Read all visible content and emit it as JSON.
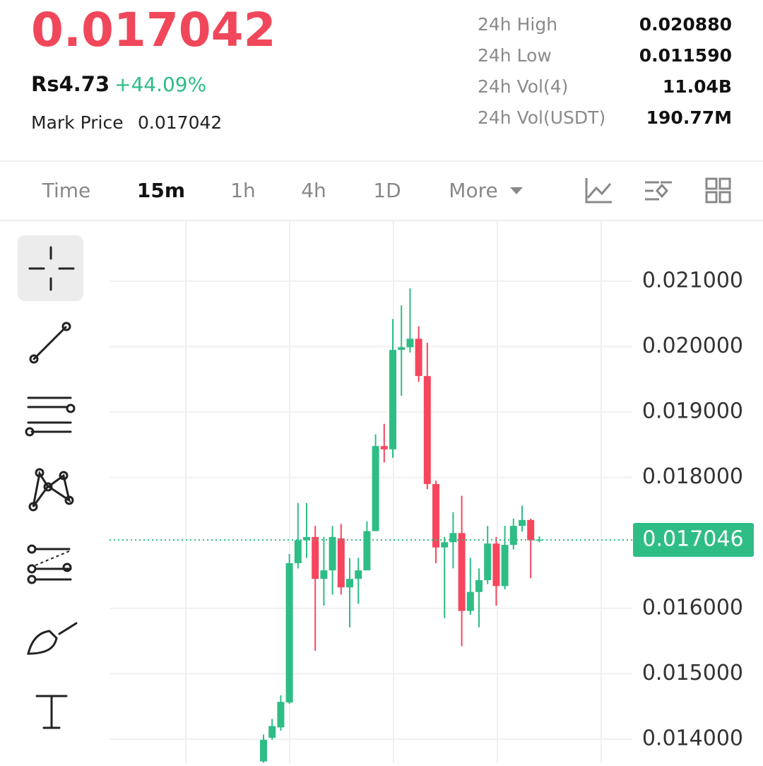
{
  "header": {
    "price": "0.017042",
    "fiat_price": "Rs4.73",
    "change": "+44.09%",
    "mark_price_label": "Mark Price",
    "mark_price": "0.017042",
    "stats": [
      {
        "label": "24h High",
        "value": "0.020880"
      },
      {
        "label": "24h Low",
        "value": "0.011590"
      },
      {
        "label": "24h Vol(4)",
        "value": "11.04B"
      },
      {
        "label": "24h Vol(USDT)",
        "value": "190.77M"
      }
    ]
  },
  "tabs": {
    "items": [
      "Time",
      "15m",
      "1h",
      "4h",
      "1D",
      "More"
    ],
    "active": "15m"
  },
  "chart_data": {
    "type": "candlestick",
    "up_color": "#2ebd85",
    "down_color": "#f6465d",
    "ylim": [
      0.013633,
      0.021928
    ],
    "yticks": [
      {
        "value": 0.014,
        "label": "0.014000"
      },
      {
        "value": 0.015,
        "label": "0.015000"
      },
      {
        "value": 0.016,
        "label": "0.016000"
      },
      {
        "value": 0.018,
        "label": "0.018000"
      },
      {
        "value": 0.019,
        "label": "0.019000"
      },
      {
        "value": 0.02,
        "label": "0.020000"
      },
      {
        "value": 0.021,
        "label": "0.021000"
      }
    ],
    "grid": true,
    "last_price": 0.017046,
    "open": [
      0.01366,
      0.01402,
      0.01418,
      0.01456,
      0.01669,
      0.01704,
      0.01709,
      0.01645,
      0.01658,
      0.01707,
      0.01632,
      0.01645,
      0.01658,
      0.01718,
      0.01848,
      0.01843,
      0.01995,
      0.01999,
      0.02012,
      0.01955,
      0.0179,
      0.01693,
      0.01701,
      0.01715,
      0.01596,
      0.01625,
      0.01643,
      0.01699,
      0.01634,
      0.01697,
      0.01726,
      0.01735,
      0.01704
    ],
    "high": [
      0.01407,
      0.01431,
      0.01467,
      0.01683,
      0.01761,
      0.01761,
      0.01726,
      0.01709,
      0.01726,
      0.01729,
      0.01677,
      0.01677,
      0.01733,
      0.01866,
      0.01882,
      0.02042,
      0.02063,
      0.02089,
      0.02031,
      0.02006,
      0.01795,
      0.01709,
      0.01747,
      0.01772,
      0.01677,
      0.01661,
      0.01726,
      0.01709,
      0.01726,
      0.01737,
      0.01757,
      0.01737,
      0.0171
    ],
    "low": [
      0.01364,
      0.01399,
      0.01413,
      0.01454,
      0.01661,
      0.01677,
      0.01535,
      0.01604,
      0.01621,
      0.01621,
      0.01571,
      0.01607,
      0.01658,
      0.01718,
      0.01823,
      0.0183,
      0.01925,
      0.01991,
      0.01946,
      0.01782,
      0.01669,
      0.01585,
      0.01661,
      0.01542,
      0.0159,
      0.01571,
      0.01637,
      0.01604,
      0.01629,
      0.0169,
      0.01717,
      0.01646,
      0.01701
    ],
    "close": [
      0.01399,
      0.0142,
      0.01457,
      0.01669,
      0.01704,
      0.01709,
      0.01645,
      0.01658,
      0.01709,
      0.01632,
      0.01645,
      0.01658,
      0.01718,
      0.01848,
      0.01843,
      0.01995,
      0.01999,
      0.02012,
      0.01955,
      0.0179,
      0.01693,
      0.01701,
      0.01715,
      0.01596,
      0.01625,
      0.01643,
      0.01699,
      0.01634,
      0.01697,
      0.01726,
      0.01735,
      0.01704,
      0.01705
    ]
  }
}
